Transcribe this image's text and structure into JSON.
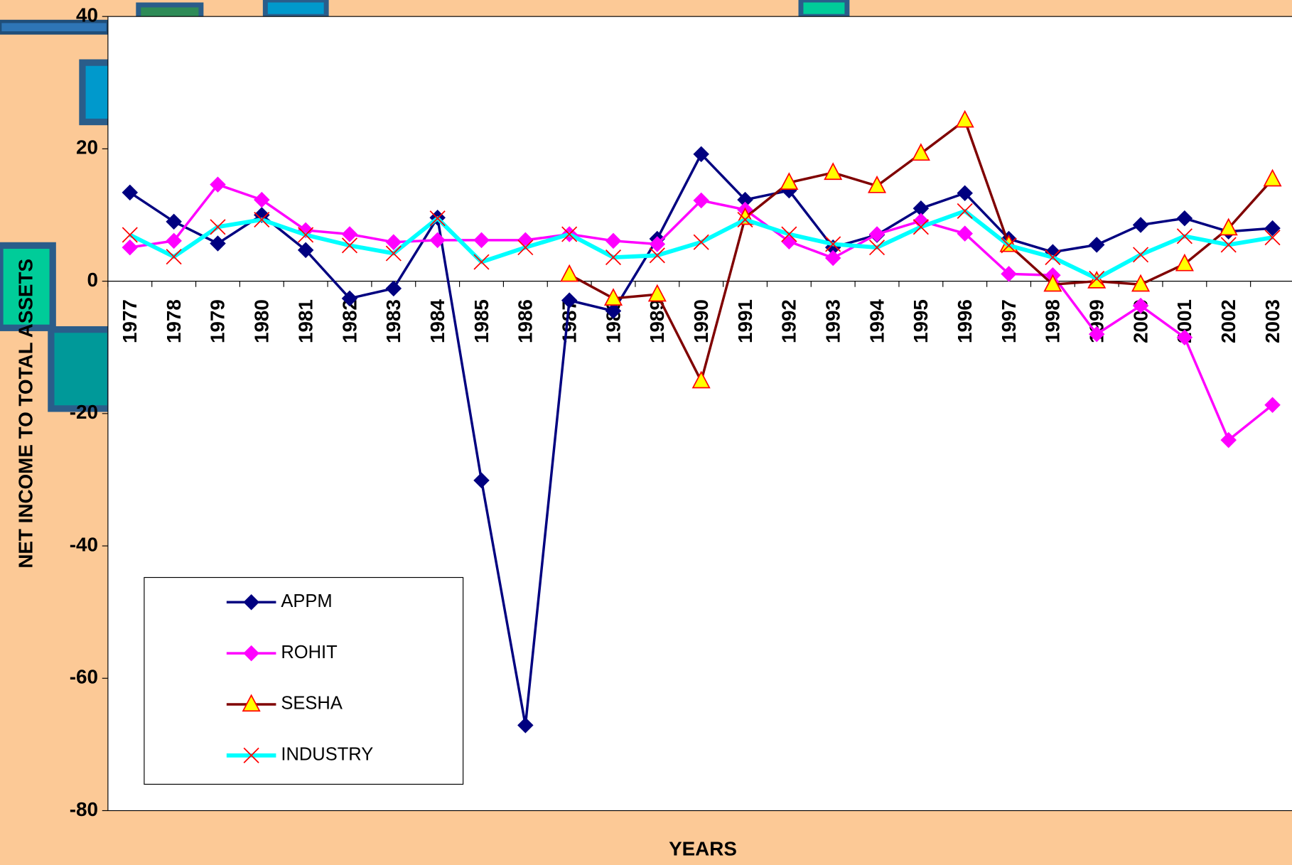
{
  "chart_data": {
    "type": "line",
    "x_label": "YEARS",
    "y_label": "NET INCOME TO TOTAL ASSETS",
    "categories": [
      "1977",
      "1978",
      "1979",
      "1980",
      "1981",
      "1982",
      "1983",
      "1984",
      "1985",
      "1986",
      "1987",
      "1988",
      "1989",
      "1990",
      "1991",
      "1992",
      "1993",
      "1994",
      "1995",
      "1996",
      "1997",
      "1998",
      "1999",
      "2000",
      "2001",
      "2002",
      "2003"
    ],
    "ylim": [
      -80,
      40
    ],
    "yticks": [
      -80,
      -60,
      -40,
      -20,
      0,
      20,
      40
    ],
    "legend": "lower left",
    "series": [
      {
        "name": "APPM",
        "color": "#000080",
        "marker": "diamond",
        "marker_fill": "#000080",
        "marker_edge": "#000080",
        "values": [
          13.4,
          9.0,
          5.7,
          10.0,
          4.7,
          -2.6,
          -1.1,
          9.6,
          -30.1,
          -67.1,
          -2.9,
          -4.5,
          6.4,
          19.2,
          12.3,
          13.7,
          5.1,
          7.0,
          11.0,
          13.3,
          6.4,
          4.4,
          5.5,
          8.5,
          9.5,
          7.5,
          8.0
        ]
      },
      {
        "name": "ROHIT",
        "color": "#ff00ff",
        "marker": "diamond",
        "marker_fill": "#ff00ff",
        "marker_edge": "#ff00ff",
        "values": [
          5.1,
          6.1,
          14.6,
          12.3,
          7.7,
          7.1,
          5.9,
          6.2,
          6.2,
          6.2,
          7.1,
          6.1,
          5.6,
          12.2,
          10.8,
          6.0,
          3.5,
          7.1,
          9.1,
          7.2,
          1.1,
          0.9,
          -8.0,
          -3.7,
          -8.5,
          -24.0,
          -18.7
        ]
      },
      {
        "name": "SESHA",
        "color": "#800000",
        "marker": "triangle",
        "marker_fill": "#ffff00",
        "marker_edge": "#ff0000",
        "values": [
          null,
          null,
          null,
          null,
          null,
          null,
          null,
          null,
          null,
          null,
          1.0,
          -2.6,
          -2.0,
          -15.1,
          9.6,
          14.9,
          16.4,
          14.4,
          19.3,
          24.3,
          5.5,
          -0.5,
          0,
          -0.5,
          2.6,
          8.0,
          15.4
        ]
      },
      {
        "name": "INDUSTRY",
        "color": "#00ffff",
        "marker": "x",
        "marker_fill": "none",
        "marker_edge": "#ff0000",
        "values": [
          7.0,
          3.7,
          8.2,
          9.3,
          7.0,
          5.4,
          4.2,
          9.5,
          2.9,
          5.1,
          7.1,
          3.6,
          3.9,
          5.9,
          9.3,
          7.1,
          5.6,
          5.1,
          8.2,
          10.6,
          5.4,
          3.6,
          0.4,
          4.0,
          6.8,
          5.5,
          6.6
        ]
      }
    ]
  }
}
